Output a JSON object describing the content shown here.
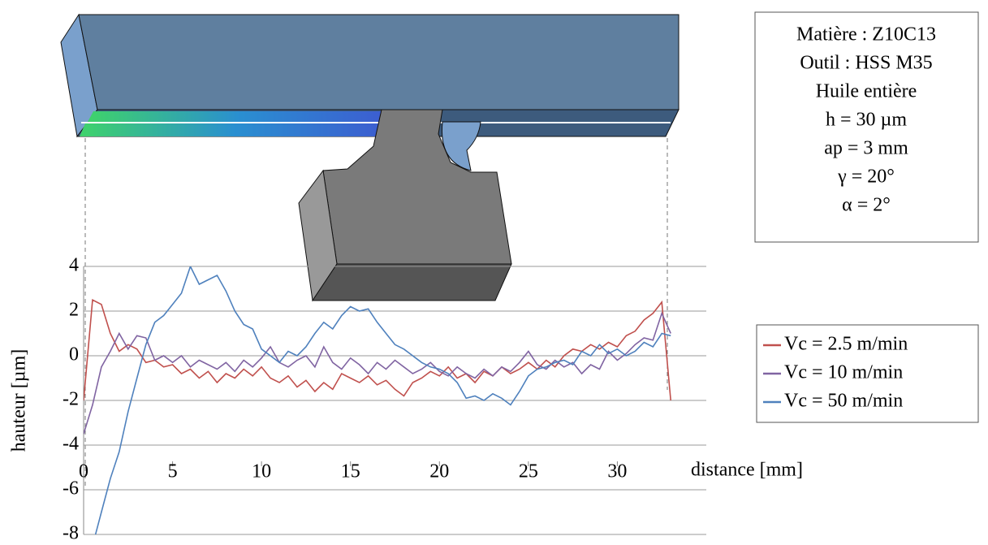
{
  "chart_data": {
    "type": "line",
    "x_label": "distance [mm]",
    "y_label": "hauteur [µm]",
    "annotations": [
      "Matière : Z10C13",
      "Outil : HSS M35",
      "Huile entière",
      "h = 30 µm",
      "ap = 3 mm",
      "γ = 20°",
      "α = 2°"
    ],
    "x": [
      0,
      0.5,
      1,
      1.5,
      2,
      2.5,
      3,
      3.5,
      4,
      4.5,
      5,
      5.5,
      6,
      6.5,
      7,
      7.5,
      8,
      8.5,
      9,
      9.5,
      10,
      10.5,
      11,
      11.5,
      12,
      12.5,
      13,
      13.5,
      14,
      14.5,
      15,
      15.5,
      16,
      16.5,
      17,
      17.5,
      18,
      18.5,
      19,
      19.5,
      20,
      20.5,
      21,
      21.5,
      22,
      22.5,
      23,
      23.5,
      24,
      24.5,
      25,
      25.5,
      26,
      26.5,
      27,
      27.5,
      28,
      28.5,
      29,
      29.5,
      30,
      30.5,
      31,
      31.5,
      32,
      32.5,
      33
    ],
    "series": [
      {
        "name": "Vc = 2.5 m/min",
        "color": "#c0504d",
        "values": [
          -2,
          2.5,
          2.3,
          1.0,
          0.2,
          0.5,
          0.3,
          -0.3,
          -0.2,
          -0.5,
          -0.4,
          -0.8,
          -0.6,
          -1.0,
          -0.7,
          -1.2,
          -0.8,
          -1.0,
          -0.6,
          -0.9,
          -0.5,
          -1.0,
          -1.2,
          -0.9,
          -1.4,
          -1.1,
          -1.6,
          -1.2,
          -1.5,
          -0.8,
          -1.0,
          -1.2,
          -0.9,
          -1.3,
          -1.1,
          -1.5,
          -1.8,
          -1.2,
          -1.0,
          -0.7,
          -0.9,
          -0.5,
          -1.0,
          -0.8,
          -1.2,
          -0.7,
          -0.9,
          -0.5,
          -0.8,
          -0.6,
          -0.3,
          -0.6,
          -0.2,
          -0.5,
          0.0,
          0.3,
          0.2,
          0.5,
          0.3,
          0.6,
          0.4,
          0.9,
          1.1,
          1.6,
          1.9,
          2.4,
          -2
        ]
      },
      {
        "name": "Vc = 10 m/min",
        "color": "#8064a2",
        "values": [
          -3.5,
          -2.2,
          -0.5,
          0.2,
          1.0,
          0.3,
          0.9,
          0.8,
          -0.2,
          0.0,
          -0.3,
          0.0,
          -0.5,
          -0.2,
          -0.4,
          -0.6,
          -0.3,
          -0.7,
          -0.2,
          -0.5,
          -0.1,
          0.4,
          -0.3,
          -0.5,
          -0.2,
          0.0,
          -0.5,
          0.4,
          -0.3,
          -0.6,
          -0.1,
          -0.4,
          -0.8,
          -0.3,
          -0.6,
          -0.2,
          -0.5,
          -0.8,
          -0.6,
          -0.3,
          -0.7,
          -0.9,
          -0.5,
          -0.8,
          -1.0,
          -0.6,
          -0.9,
          -0.5,
          -0.7,
          -0.3,
          0.2,
          -0.4,
          -0.6,
          -0.2,
          -0.5,
          -0.3,
          -0.8,
          -0.4,
          -0.6,
          0.2,
          -0.2,
          0.1,
          0.5,
          0.8,
          0.7,
          1.9,
          1.0
        ]
      },
      {
        "name": "Vc = 50 m/min",
        "color": "#4f81bd",
        "values": [
          null,
          -8.5,
          -7.0,
          -5.5,
          -4.3,
          -2.5,
          -1.0,
          0.5,
          1.5,
          1.8,
          2.3,
          2.8,
          4.0,
          3.2,
          3.4,
          3.6,
          2.9,
          2.0,
          1.4,
          1.2,
          0.3,
          0.0,
          -0.3,
          0.2,
          0.0,
          0.4,
          1.0,
          1.5,
          1.2,
          1.8,
          2.2,
          2.0,
          2.1,
          1.5,
          1.0,
          0.5,
          0.3,
          0.0,
          -0.3,
          -0.5,
          -0.6,
          -0.8,
          -1.2,
          -1.9,
          -1.8,
          -2.0,
          -1.7,
          -1.9,
          -2.2,
          -1.6,
          -0.9,
          -0.6,
          -0.5,
          -0.3,
          -0.2,
          -0.4,
          0.2,
          0.0,
          0.5,
          0.1,
          0.3,
          0.0,
          0.2,
          0.6,
          0.4,
          1.0,
          0.9
        ]
      }
    ],
    "xlim": [
      0,
      35
    ],
    "xticks": [
      0,
      5,
      10,
      15,
      20,
      25,
      30
    ],
    "ylim": [
      -8,
      4
    ],
    "yticks": [
      -8,
      -6,
      -4,
      -2,
      0,
      2,
      4
    ],
    "grid": true,
    "legend": "right"
  }
}
